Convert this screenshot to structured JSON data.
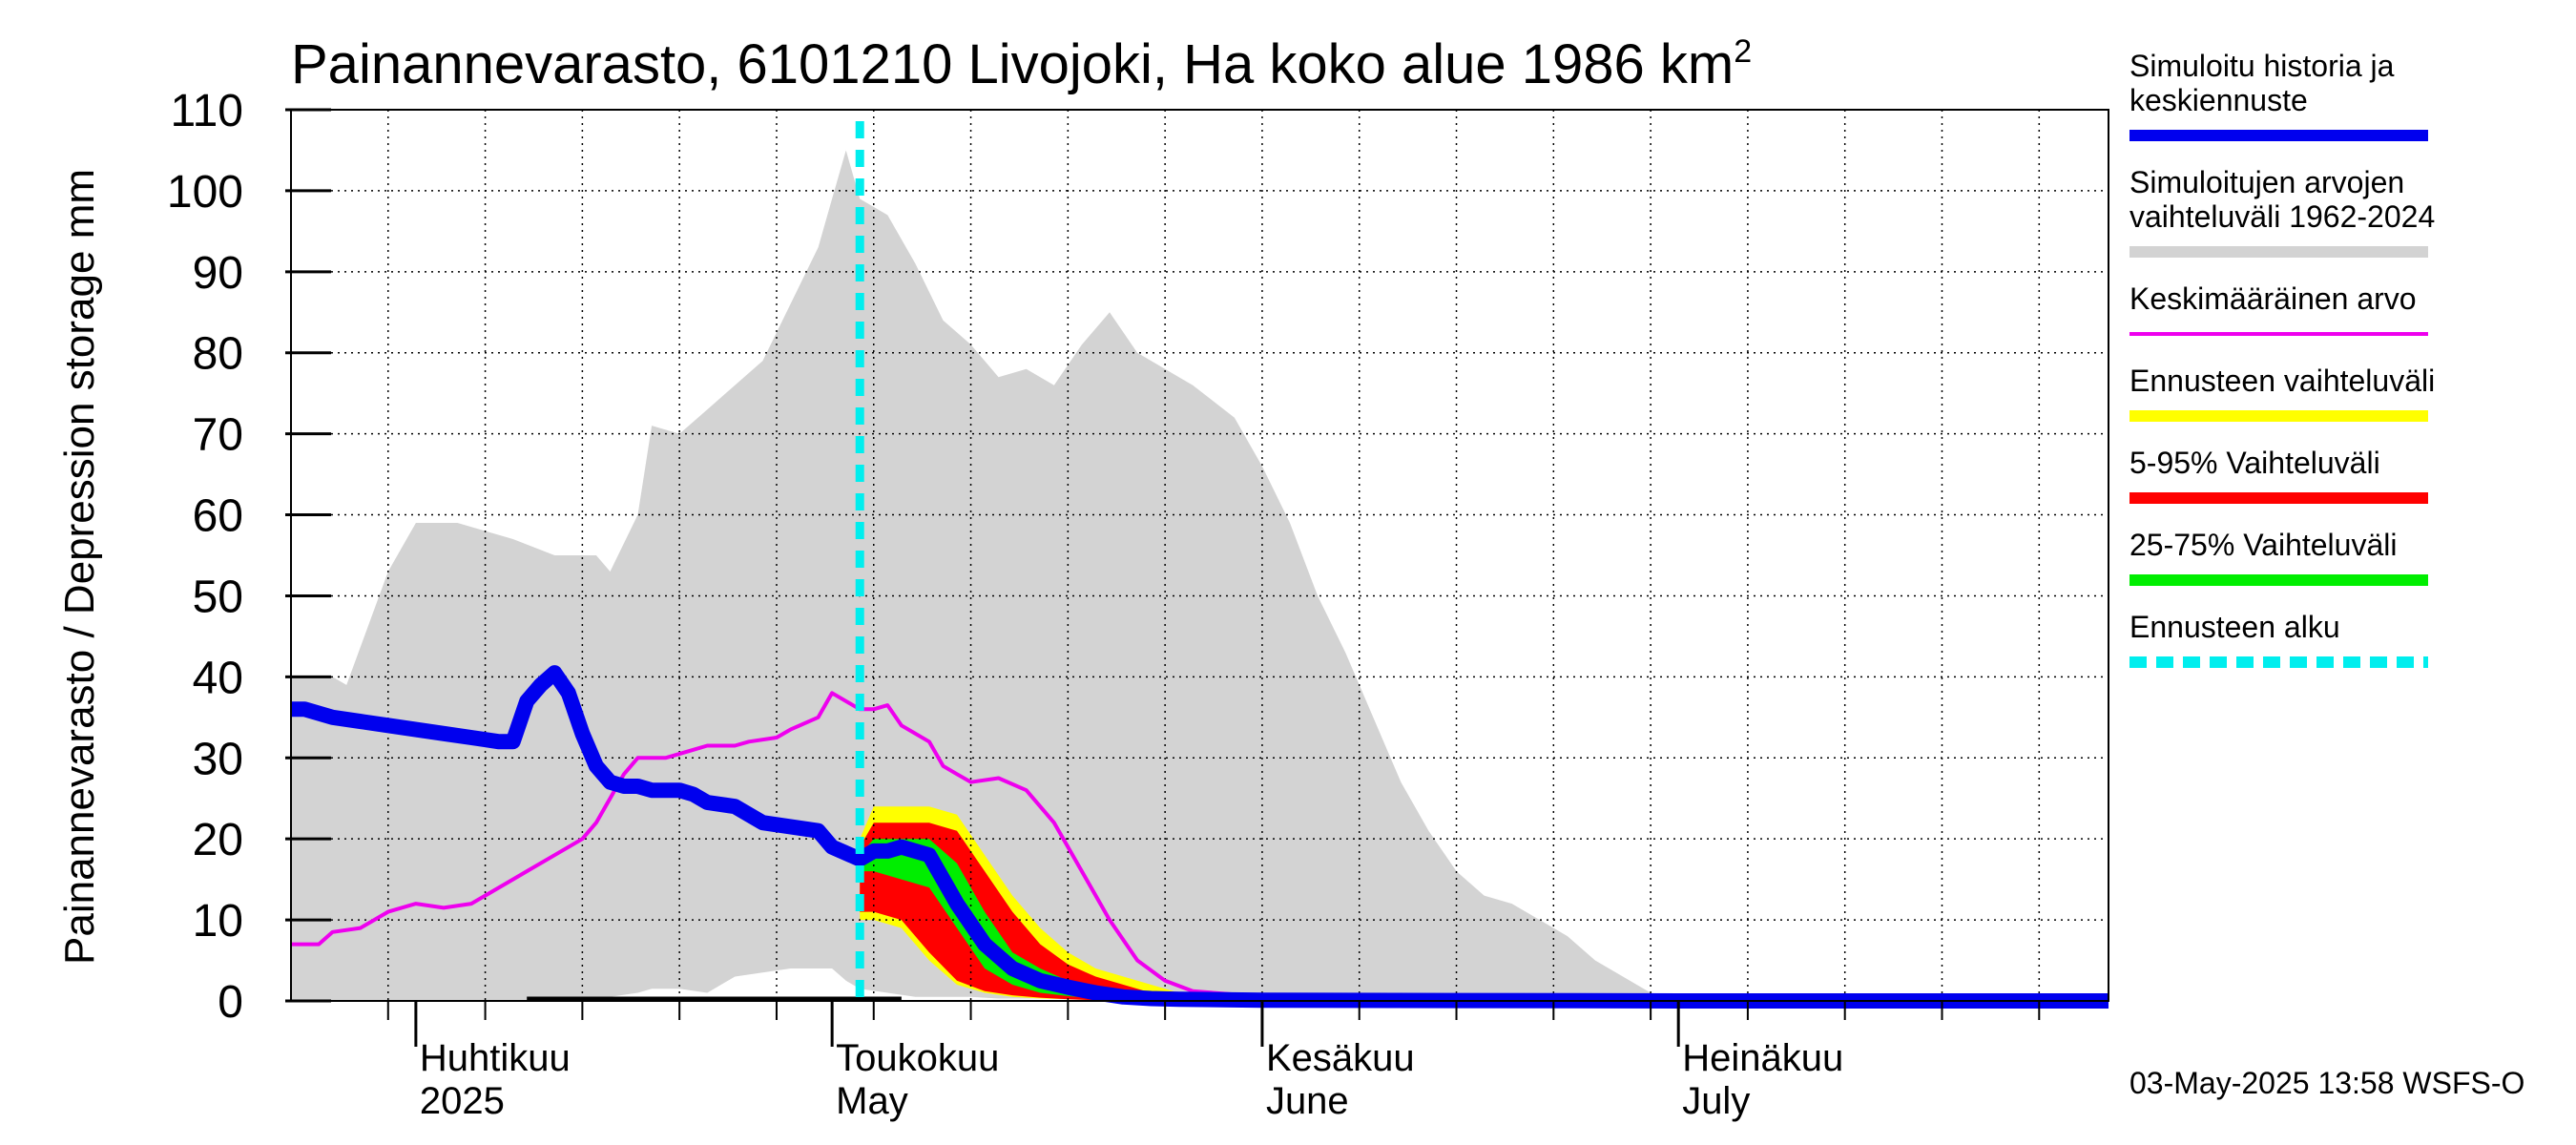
{
  "chart_data": {
    "type": "area",
    "title_main": "Painannevarasto, 6101210 Livojoki, Ha koko alue 1986 km",
    "title_sup": "2",
    "ylabel": "Painannevarasto / Depression storage    mm",
    "ylim": [
      0,
      110
    ],
    "y_ticks": [
      0,
      10,
      20,
      30,
      40,
      50,
      60,
      70,
      80,
      90,
      100,
      110
    ],
    "xlim": [
      "2025-03-23",
      "2025-08-01"
    ],
    "x_months": [
      {
        "date": "2025-04-01",
        "line1": "Huhtikuu",
        "line2": "2025"
      },
      {
        "date": "2025-05-01",
        "line1": "Toukokuu",
        "line2": "May"
      },
      {
        "date": "2025-06-01",
        "line1": "Kesäkuu",
        "line2": "June"
      },
      {
        "date": "2025-07-01",
        "line1": "Heinäkuu",
        "line2": "July"
      }
    ],
    "forecast_start": "2025-05-03",
    "grid": true,
    "legend_position": "right",
    "legend": [
      {
        "lines": [
          "Simuloitu historia ja",
          "keskiennuste"
        ],
        "color": "#0000ee",
        "style": "thick"
      },
      {
        "lines": [
          "Simuloitujen arvojen",
          "vaihteluväli 1962-2024"
        ],
        "color": "#d3d3d3",
        "style": "thick"
      },
      {
        "lines": [
          "Keskimääräinen arvo"
        ],
        "color": "#ee00ee",
        "style": "thin"
      },
      {
        "lines": [
          "Ennusteen vaihteluväli"
        ],
        "color": "#ffff00",
        "style": "thick"
      },
      {
        "lines": [
          "5-95% Vaihteluväli"
        ],
        "color": "#ff0000",
        "style": "thick"
      },
      {
        "lines": [
          "25-75% Vaihteluväli"
        ],
        "color": "#00ee00",
        "style": "thick"
      },
      {
        "lines": [
          "Ennusteen alku"
        ],
        "color": "#00eeee",
        "style": "dashed"
      }
    ],
    "series": [
      {
        "name": "Simuloitujen arvojen vaihteluväli 1962-2024",
        "kind": "band",
        "color": "#d3d3d3",
        "x": [
          "2025-03-23",
          "2025-03-26",
          "2025-03-27",
          "2025-03-30",
          "2025-04-01",
          "2025-04-04",
          "2025-04-08",
          "2025-04-11",
          "2025-04-14",
          "2025-04-15",
          "2025-04-17",
          "2025-04-18",
          "2025-04-20",
          "2025-04-22",
          "2025-04-24",
          "2025-04-26",
          "2025-04-28",
          "2025-04-30",
          "2025-05-01",
          "2025-05-02",
          "2025-05-03",
          "2025-05-05",
          "2025-05-07",
          "2025-05-09",
          "2025-05-11",
          "2025-05-13",
          "2025-05-15",
          "2025-05-17",
          "2025-05-19",
          "2025-05-21",
          "2025-05-23",
          "2025-05-25",
          "2025-05-27",
          "2025-05-30",
          "2025-06-01",
          "2025-06-03",
          "2025-06-05",
          "2025-06-07",
          "2025-06-09",
          "2025-06-11",
          "2025-06-13",
          "2025-06-15",
          "2025-06-17",
          "2025-06-19",
          "2025-06-21",
          "2025-06-23",
          "2025-06-25",
          "2025-06-27",
          "2025-06-29",
          "2025-07-01",
          "2025-07-15",
          "2025-08-01"
        ],
        "upper": [
          40,
          40,
          39,
          53,
          59,
          59,
          57,
          55,
          55,
          53,
          60,
          71,
          70,
          73,
          76,
          79,
          86,
          93,
          99,
          105,
          99,
          97,
          91,
          84,
          81,
          77,
          78,
          76,
          81,
          85,
          80,
          78,
          76,
          72,
          66,
          59,
          50,
          43,
          35,
          27,
          21,
          16,
          13,
          12,
          10,
          8,
          5,
          3,
          1,
          0.5,
          0.5,
          0.5
        ],
        "lower": [
          0,
          0,
          0,
          0,
          0,
          0,
          0,
          0,
          0,
          0.5,
          1,
          1.5,
          1.5,
          1,
          3,
          3.5,
          4,
          4,
          4,
          2.5,
          1.5,
          1,
          0.5,
          0.5,
          0.5,
          0.3,
          0.3,
          0.3,
          0.2,
          0.2,
          0.1,
          0,
          0,
          0,
          0,
          0,
          0,
          0,
          0,
          0,
          0,
          0,
          0,
          0,
          0,
          0,
          0,
          0,
          0,
          0,
          0,
          0
        ]
      },
      {
        "name": "Ennusteen vaihteluväli",
        "kind": "band",
        "color": "#ffff00",
        "x": [
          "2025-05-03",
          "2025-05-04",
          "2025-05-06",
          "2025-05-08",
          "2025-05-10",
          "2025-05-12",
          "2025-05-14",
          "2025-05-16",
          "2025-05-18",
          "2025-05-20",
          "2025-05-22",
          "2025-05-24",
          "2025-05-26"
        ],
        "upper": [
          20,
          24,
          24,
          24,
          23,
          18,
          13,
          9,
          6,
          4,
          3,
          2,
          1
        ],
        "lower": [
          10,
          10,
          9,
          5,
          2,
          1,
          0.5,
          0.3,
          0.2,
          0.1,
          0,
          0,
          0
        ]
      },
      {
        "name": "5-95% Vaihteluväli",
        "kind": "band",
        "color": "#ff0000",
        "x": [
          "2025-05-03",
          "2025-05-04",
          "2025-05-06",
          "2025-05-08",
          "2025-05-10",
          "2025-05-12",
          "2025-05-14",
          "2025-05-16",
          "2025-05-18",
          "2025-05-20",
          "2025-05-22",
          "2025-05-24"
        ],
        "upper": [
          19,
          22,
          22,
          22,
          21,
          16,
          11,
          7,
          4.5,
          3,
          2,
          1
        ],
        "lower": [
          11,
          11,
          10,
          6,
          2.5,
          1.2,
          0.7,
          0.4,
          0.2,
          0.1,
          0,
          0
        ]
      },
      {
        "name": "25-75% Vaihteluväli",
        "kind": "band",
        "color": "#00ee00",
        "x": [
          "2025-05-03",
          "2025-05-04",
          "2025-05-06",
          "2025-05-08",
          "2025-05-10",
          "2025-05-12",
          "2025-05-14",
          "2025-05-16",
          "2025-05-18",
          "2025-05-20"
        ],
        "upper": [
          18,
          20,
          20,
          20,
          17,
          11,
          6,
          4,
          2.5,
          1.5
        ],
        "lower": [
          16,
          16,
          15,
          14,
          9,
          4,
          2,
          1,
          0.6,
          0.3
        ]
      },
      {
        "name": "Keskimääräinen arvo",
        "kind": "line",
        "color": "#ee00ee",
        "x": [
          "2025-03-23",
          "2025-03-25",
          "2025-03-26",
          "2025-03-28",
          "2025-03-30",
          "2025-04-01",
          "2025-04-03",
          "2025-04-05",
          "2025-04-06",
          "2025-04-08",
          "2025-04-09",
          "2025-04-11",
          "2025-04-13",
          "2025-04-14",
          "2025-04-15",
          "2025-04-16",
          "2025-04-17",
          "2025-04-19",
          "2025-04-21",
          "2025-04-22",
          "2025-04-24",
          "2025-04-25",
          "2025-04-27",
          "2025-04-28",
          "2025-04-30",
          "2025-05-01",
          "2025-05-03",
          "2025-05-04",
          "2025-05-05",
          "2025-05-06",
          "2025-05-08",
          "2025-05-09",
          "2025-05-10",
          "2025-05-11",
          "2025-05-13",
          "2025-05-15",
          "2025-05-17",
          "2025-05-19",
          "2025-05-21",
          "2025-05-23",
          "2025-05-25",
          "2025-05-27",
          "2025-05-30",
          "2025-06-01",
          "2025-06-15",
          "2025-08-01"
        ],
        "values": [
          7,
          7,
          8.5,
          9,
          11,
          12,
          11.5,
          12,
          13,
          15,
          16,
          18,
          20,
          22,
          25,
          28,
          30,
          30,
          31,
          31.5,
          31.5,
          32,
          32.5,
          33.5,
          35,
          38,
          36,
          36,
          36.5,
          34,
          32,
          29,
          28,
          27,
          27.5,
          26,
          22,
          16,
          10,
          5,
          2.5,
          1.2,
          0.8,
          0.6,
          0.6,
          0.6
        ]
      },
      {
        "name": "Simuloitu historia ja keskiennuste",
        "kind": "line",
        "color": "#0000ee",
        "x": [
          "2025-03-23",
          "2025-03-24",
          "2025-03-26",
          "2025-03-28",
          "2025-03-30",
          "2025-04-01",
          "2025-04-03",
          "2025-04-05",
          "2025-04-07",
          "2025-04-08",
          "2025-04-09",
          "2025-04-10",
          "2025-04-11",
          "2025-04-12",
          "2025-04-13",
          "2025-04-14",
          "2025-04-15",
          "2025-04-16",
          "2025-04-17",
          "2025-04-18",
          "2025-04-20",
          "2025-04-21",
          "2025-04-22",
          "2025-04-24",
          "2025-04-26",
          "2025-04-28",
          "2025-04-30",
          "2025-05-01",
          "2025-05-03",
          "2025-05-04",
          "2025-05-05",
          "2025-05-06",
          "2025-05-08",
          "2025-05-09",
          "2025-05-10",
          "2025-05-12",
          "2025-05-14",
          "2025-05-16",
          "2025-05-18",
          "2025-05-20",
          "2025-05-22",
          "2025-05-24",
          "2025-05-26",
          "2025-06-01",
          "2025-07-01",
          "2025-08-01"
        ],
        "values": [
          36,
          36,
          35,
          34.5,
          34,
          33.5,
          33,
          32.5,
          32,
          32,
          37,
          39,
          40.5,
          38,
          33,
          29,
          27,
          26.5,
          26.5,
          26,
          26,
          25.5,
          24.5,
          24,
          22,
          21.5,
          21,
          19,
          17.5,
          18.5,
          18.5,
          19,
          18,
          15,
          12,
          7,
          4,
          2.5,
          1.7,
          1,
          0.5,
          0.3,
          0.2,
          0.1,
          0,
          0
        ]
      }
    ],
    "baseline_bar": {
      "from": "2025-04-09",
      "to": "2025-05-06"
    },
    "footer": "03-May-2025 13:58 WSFS-O"
  }
}
